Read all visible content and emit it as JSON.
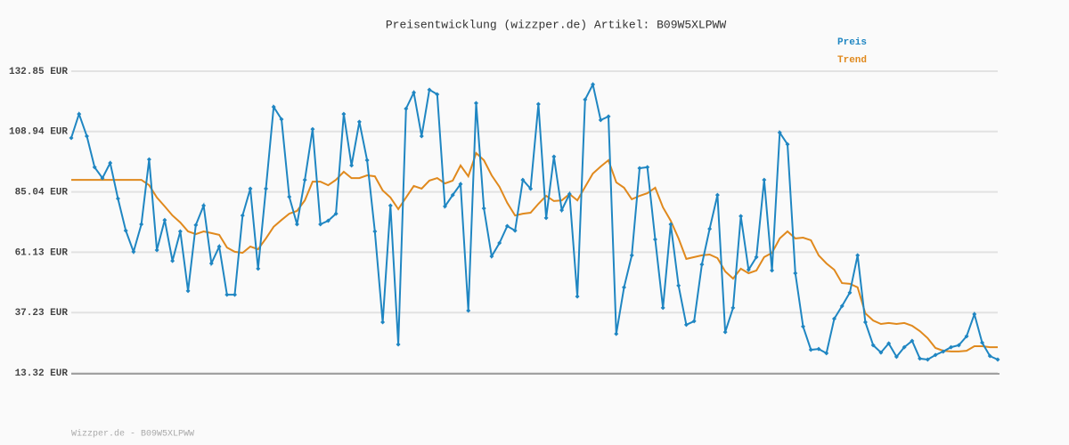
{
  "chart_data": {
    "type": "line",
    "title": "Preisentwicklung (wizzper.de) Artikel: B09W5XLPWW",
    "footer": "Wizzper.de - B09W5XLPWW",
    "ylim": [
      13.32,
      132.85
    ],
    "yticks": [
      {
        "value": 13.32,
        "label": "13.32 EUR"
      },
      {
        "value": 37.23,
        "label": "37.23 EUR"
      },
      {
        "value": 61.13,
        "label": "61.13 EUR"
      },
      {
        "value": 85.04,
        "label": "85.04 EUR"
      },
      {
        "value": 108.94,
        "label": "108.94 EUR"
      },
      {
        "value": 132.85,
        "label": "132.85 EUR"
      }
    ],
    "grid": true,
    "legend": "top-right",
    "series": [
      {
        "name": "Preis",
        "color": "#1f86c2",
        "markers": true,
        "values": [
          106.4,
          115.9,
          107.1,
          94.8,
          90.5,
          96.5,
          82.4,
          69.7,
          61.3,
          72.2,
          97.9,
          62.0,
          73.9,
          57.7,
          69.4,
          45.8,
          71.9,
          79.6,
          56.7,
          63.4,
          44.3,
          44.3,
          75.7,
          86.3,
          54.6,
          86.3,
          118.7,
          113.8,
          83.1,
          72.2,
          89.8,
          109.9,
          72.2,
          73.6,
          76.4,
          115.9,
          95.5,
          112.8,
          97.6,
          69.4,
          33.4,
          79.6,
          24.6,
          118.0,
          124.4,
          107.1,
          125.5,
          123.7,
          79.3,
          83.8,
          88.1,
          38.0,
          120.2,
          78.5,
          59.5,
          64.8,
          71.5,
          69.7,
          89.8,
          86.3,
          119.8,
          74.7,
          99.0,
          77.8,
          84.2,
          43.6,
          121.6,
          127.6,
          113.5,
          114.9,
          28.8,
          47.2,
          59.9,
          94.4,
          94.8,
          66.2,
          39.1,
          72.2,
          47.9,
          32.4,
          33.8,
          56.3,
          70.4,
          83.8,
          29.5,
          39.1,
          75.4,
          54.2,
          59.2,
          89.8,
          53.9,
          108.5,
          103.9,
          52.8,
          31.7,
          22.5,
          22.8,
          21.1,
          34.8,
          39.8,
          45.1,
          59.9,
          33.4,
          24.3,
          21.4,
          25.0,
          19.7,
          23.5,
          26.0,
          19.0,
          18.6,
          20.4,
          21.8,
          23.5,
          24.3,
          27.8,
          36.6,
          25.3,
          20.0,
          18.6
        ]
      },
      {
        "name": "Trend",
        "color": "#e0891d",
        "markers": false,
        "values": [
          89.8,
          89.8,
          89.8,
          89.8,
          89.8,
          89.8,
          89.8,
          89.8,
          89.8,
          89.8,
          87.7,
          82.8,
          79.3,
          75.7,
          72.9,
          69.4,
          68.3,
          69.4,
          68.7,
          68.0,
          63.0,
          61.3,
          60.9,
          63.4,
          62.3,
          66.6,
          71.2,
          73.9,
          76.4,
          77.5,
          81.7,
          89.1,
          89.1,
          87.7,
          89.8,
          93.0,
          90.5,
          90.5,
          91.6,
          91.2,
          85.6,
          82.8,
          78.2,
          82.8,
          87.4,
          86.3,
          89.5,
          90.5,
          88.4,
          89.5,
          95.5,
          91.2,
          100.4,
          97.6,
          91.6,
          87.0,
          80.7,
          75.7,
          76.4,
          76.8,
          80.3,
          83.5,
          81.4,
          81.7,
          84.2,
          81.7,
          87.0,
          92.3,
          95.1,
          97.6,
          88.8,
          86.7,
          82.1,
          83.5,
          84.5,
          86.7,
          78.9,
          73.6,
          66.6,
          58.5,
          59.2,
          59.9,
          60.2,
          58.8,
          53.5,
          50.7,
          54.6,
          52.8,
          53.9,
          59.2,
          60.9,
          66.6,
          69.4,
          66.6,
          66.9,
          65.9,
          59.9,
          56.7,
          54.2,
          48.9,
          48.6,
          47.2,
          36.9,
          34.1,
          32.7,
          33.1,
          32.7,
          33.1,
          32.0,
          29.9,
          27.1,
          23.2,
          22.1,
          21.8,
          21.8,
          22.1,
          23.9,
          23.9,
          23.5,
          23.5
        ]
      }
    ]
  }
}
